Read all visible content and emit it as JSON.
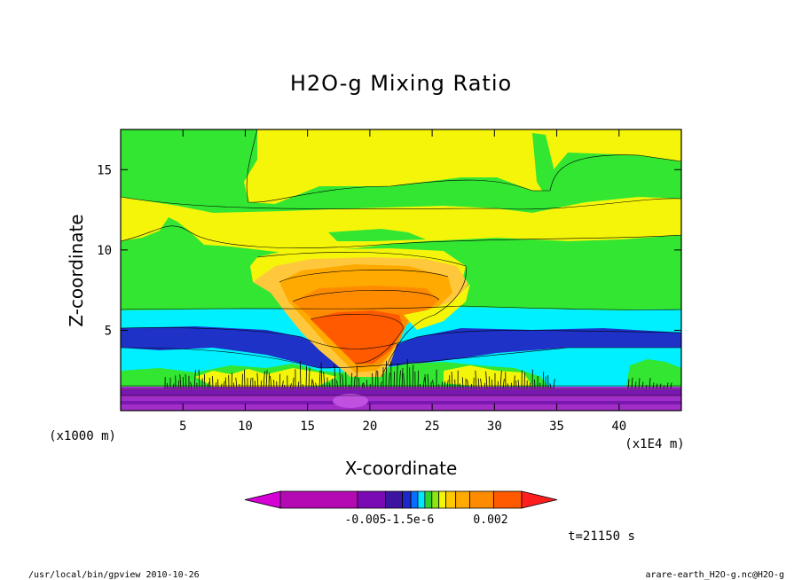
{
  "page": {
    "footer_left": "/usr/local/bin/gpview  2010-10-26",
    "footer_right": "arare-earth_H2O-g.nc@H2O-g",
    "time_label": "t=21150 s"
  },
  "chart_data": {
    "type": "heatmap",
    "title": "H2O-g Mixing Ratio",
    "xlabel": "X-coordinate",
    "ylabel": "Z-coordinate",
    "x_units": "(x1E4 m)",
    "y_units": "(x1000 m)",
    "xlim": [
      0,
      45
    ],
    "ylim": [
      0,
      17.5
    ],
    "x_ticks": [
      5,
      10,
      15,
      20,
      25,
      30,
      35,
      40
    ],
    "x_tick_labels": [
      "5",
      "10",
      "15",
      "20",
      "25",
      "30",
      "35",
      "40"
    ],
    "y_ticks": [
      5,
      10,
      15
    ],
    "y_tick_labels": [
      "5",
      "10",
      "15"
    ],
    "colorbar": {
      "labels": [
        "-0.005",
        "-1.5e-6",
        "0.002"
      ],
      "colors": [
        "#d400d4",
        "#b40ab4",
        "#7a0ab4",
        "#3c14a0",
        "#1e28c8",
        "#0a6eff",
        "#00e6ff",
        "#32d22d",
        "#8ce614",
        "#f5f50a",
        "#ffc800",
        "#ffaa00",
        "#ff8c00",
        "#ff5a00",
        "#ff1e1e"
      ],
      "extend": "both"
    },
    "grid": false,
    "colors": {
      "purple_dark": "#7818b0",
      "purple_light": "#a22ec8",
      "blue": "#1e32c8",
      "cyan": "#00f0ff",
      "green": "#32e632",
      "yellow": "#f5f50a",
      "light_orange": "#ffc83c",
      "orange": "#ffaa00",
      "dark_orange": "#ff8c00",
      "red_orange": "#ff5a00"
    }
  }
}
